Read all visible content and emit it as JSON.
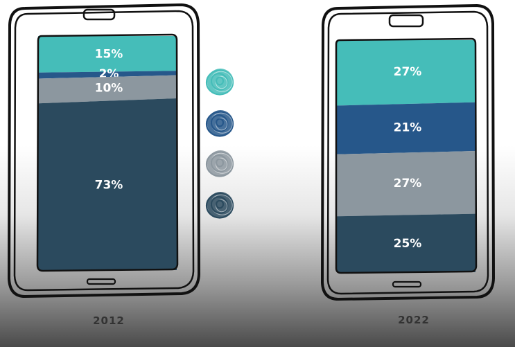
{
  "chart_data": {
    "type": "bar",
    "stacked": true,
    "normalized_percent": true,
    "colors": [
      "#45bdb9",
      "#26578a",
      "#8c979f",
      "#2b4a5e"
    ],
    "bars": [
      {
        "label": "2012",
        "values": [
          15,
          2,
          10,
          73
        ],
        "value_labels": [
          "15%",
          "2%",
          "10%",
          "73%"
        ]
      },
      {
        "label": "2022",
        "values": [
          27,
          21,
          27,
          25
        ],
        "value_labels": [
          "27%",
          "21%",
          "27%",
          "25%"
        ]
      }
    ],
    "legend": {
      "placement": "center",
      "style": "scribbled circles",
      "entries": [
        "",
        "",
        "",
        ""
      ]
    }
  }
}
